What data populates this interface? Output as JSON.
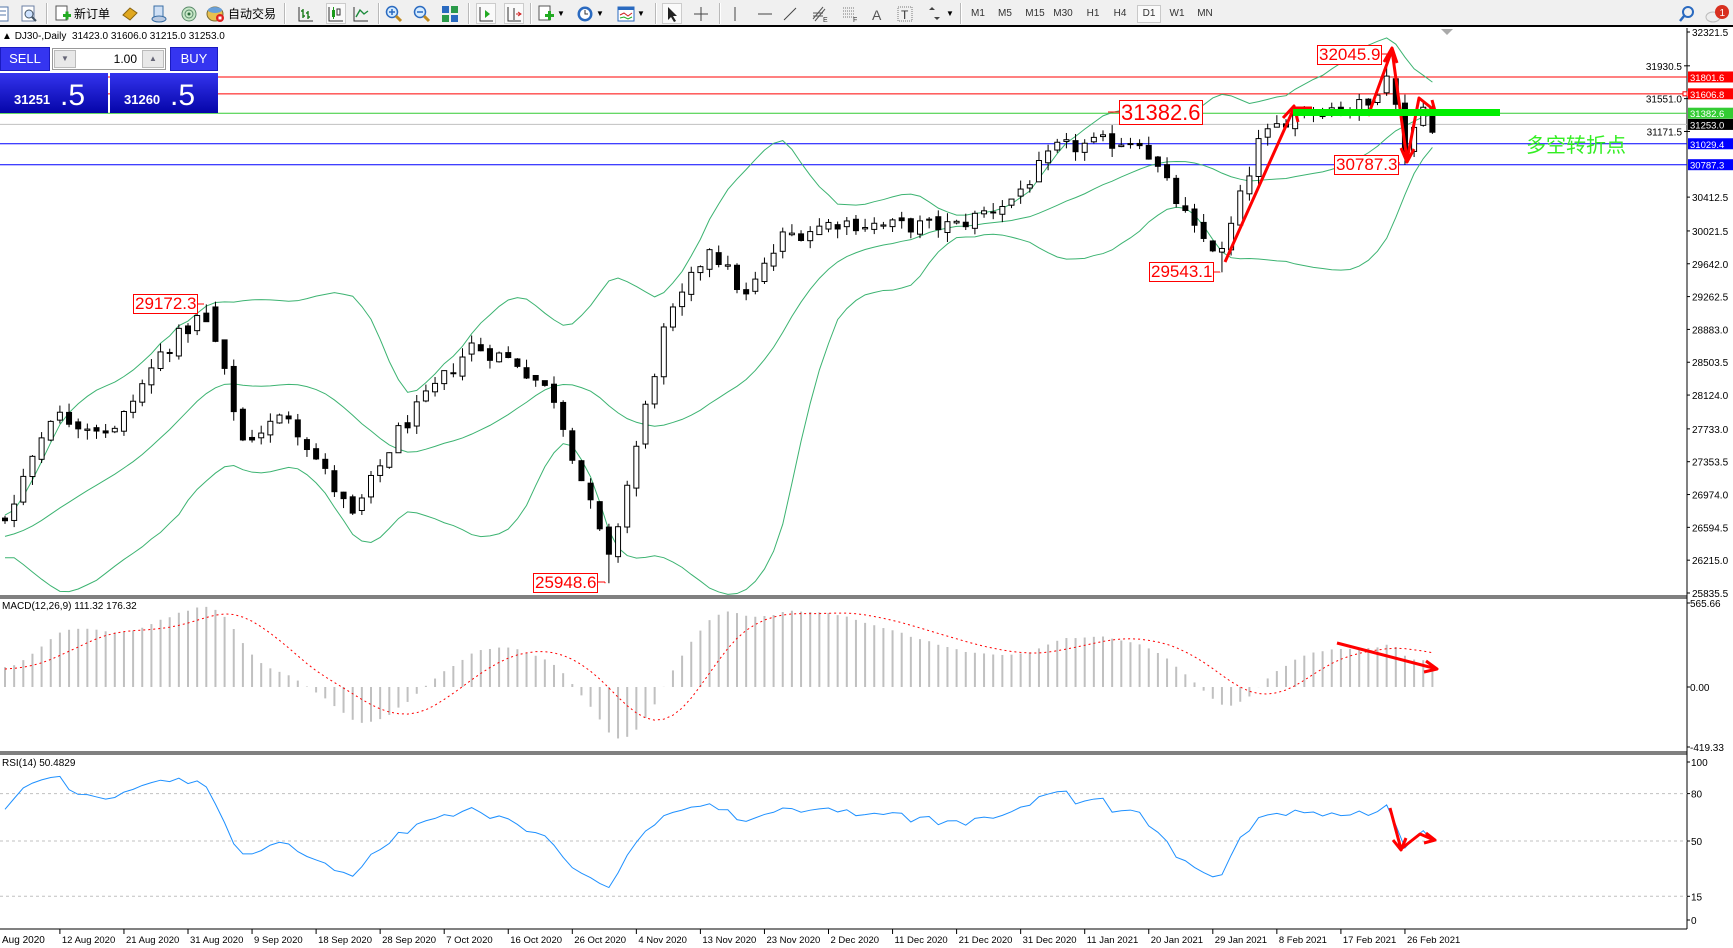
{
  "toolbar": {
    "new_order_label": "新订单",
    "auto_trading_label": "自动交易",
    "icons": [
      "new-chart",
      "print-preview",
      "new-order",
      "market-watch",
      "navigator",
      "terminal",
      "auto-trading",
      "bar-chart",
      "candlestick-chart",
      "line-chart",
      "zoom-in",
      "zoom-out",
      "tile-windows",
      "auto-scroll",
      "chart-shift",
      "indicators",
      "periods",
      "templates",
      "cursor",
      "crosshair",
      "vertical-line",
      "horizontal-line",
      "trendline",
      "fibonacci-expansion",
      "fibonacci-fan",
      "text",
      "text-label",
      "arrows",
      "search",
      "notifications"
    ],
    "timeframes": [
      "M1",
      "M5",
      "M15",
      "M30",
      "H1",
      "H4",
      "D1",
      "W1",
      "MN"
    ],
    "active_timeframe": "D1",
    "notification_count": "1"
  },
  "chart_header": {
    "symbol": "DJ30-,Daily",
    "ohlc": "31423.0 31606.0 31215.0 31253.0"
  },
  "trade_panel": {
    "sell_label": "SELL",
    "buy_label": "BUY",
    "lot": "1.00",
    "sell_price_main": "31251",
    "sell_price_frac": ".5",
    "buy_price_main": "31260",
    "buy_price_frac": ".5"
  },
  "chart_data": {
    "type": "candlestick",
    "price_range": [
      25835.5,
      32321.5
    ],
    "price_axis_labels": [
      "32321.5",
      "31930.5",
      "31551.0",
      "31171.5",
      "30412.5",
      "30021.5",
      "29642.0",
      "29262.5",
      "28883.0",
      "28503.5",
      "28124.0",
      "27733.0",
      "27353.5",
      "26974.0",
      "26594.5",
      "26215.0",
      "25835.5"
    ],
    "price_path": [
      [
        -35,
        25900
      ],
      [
        -20,
        26300
      ],
      [
        -8,
        26500
      ],
      [
        0,
        26700
      ],
      [
        5,
        27900
      ],
      [
        12,
        27700
      ],
      [
        17,
        28600
      ],
      [
        22,
        29100
      ],
      [
        26,
        27600
      ],
      [
        31,
        27900
      ],
      [
        38,
        26700
      ],
      [
        43,
        27700
      ],
      [
        51,
        28700
      ],
      [
        56,
        28500
      ],
      [
        60,
        28100
      ],
      [
        66,
        26200
      ],
      [
        72,
        28850
      ],
      [
        77,
        29850
      ],
      [
        81,
        29250
      ],
      [
        85,
        29950
      ],
      [
        91,
        30130
      ],
      [
        96,
        30080
      ],
      [
        104,
        30080
      ],
      [
        110,
        30390
      ],
      [
        115,
        30970
      ],
      [
        124,
        31090
      ],
      [
        130,
        30010
      ],
      [
        133,
        29760
      ],
      [
        137,
        31030
      ],
      [
        141,
        31420
      ],
      [
        149,
        31470
      ],
      [
        151,
        31900
      ],
      [
        153,
        31000
      ],
      [
        155,
        31450
      ],
      [
        156,
        31253
      ]
    ],
    "last_bar": {
      "open": 31423.0,
      "high": 31606.0,
      "low": 31215.0,
      "close": 31253.0
    },
    "extremes": [
      {
        "bar": 22,
        "type": "high",
        "value": "29172.3"
      },
      {
        "bar": 66,
        "type": "low",
        "value": "25948.6"
      },
      {
        "bar": 133,
        "type": "low",
        "value": "29543.1"
      },
      {
        "bar": 151,
        "type": "high",
        "value": "32045.9"
      },
      {
        "bar": 153,
        "type": "low",
        "value": "30787.3"
      }
    ],
    "levels": [
      {
        "value": "31801.6",
        "color": "#ff0000"
      },
      {
        "value": "31606.8",
        "color": "#ff0000"
      },
      {
        "value": "31382.6",
        "color": "#33cc33"
      },
      {
        "value": "31253.0",
        "color": "#000000",
        "line": "#c0c0c0"
      },
      {
        "value": "31029.4",
        "color": "#0000ff"
      },
      {
        "value": "30787.3",
        "color": "#0000ff"
      }
    ],
    "level_annotation": "31382.6",
    "pivot_text": "多空转折点",
    "bollinger": {
      "period": 20,
      "deviation": 2,
      "color": "#3cb371"
    },
    "dates": [
      "Aug 2020",
      "12 Aug 2020",
      "21 Aug 2020",
      "31 Aug 2020",
      "9 Sep 2020",
      "18 Sep 2020",
      "28 Sep 2020",
      "7 Oct 2020",
      "16 Oct 2020",
      "26 Oct 2020",
      "4 Nov 2020",
      "13 Nov 2020",
      "23 Nov 2020",
      "2 Dec 2020",
      "11 Dec 2020",
      "21 Dec 2020",
      "31 Dec 2020",
      "11 Jan 2021",
      "20 Jan 2021",
      "29 Jan 2021",
      "8 Feb 2021",
      "17 Feb 2021",
      "26 Feb 2021"
    ]
  },
  "macd": {
    "label": "MACD(12,26,9) 111.32 176.32",
    "axis_labels": [
      "565.66",
      "0.00",
      "-419.33"
    ],
    "range": [
      -419.33,
      565.66
    ],
    "hist_color": "#c0c0c0",
    "signal_color": "#ff0000"
  },
  "rsi": {
    "label": "RSI(14) 50.4829",
    "axis_labels": [
      "100",
      "80",
      "50",
      "15",
      "0"
    ],
    "levels": [
      80,
      50,
      15
    ],
    "color": "#1e90ff"
  }
}
